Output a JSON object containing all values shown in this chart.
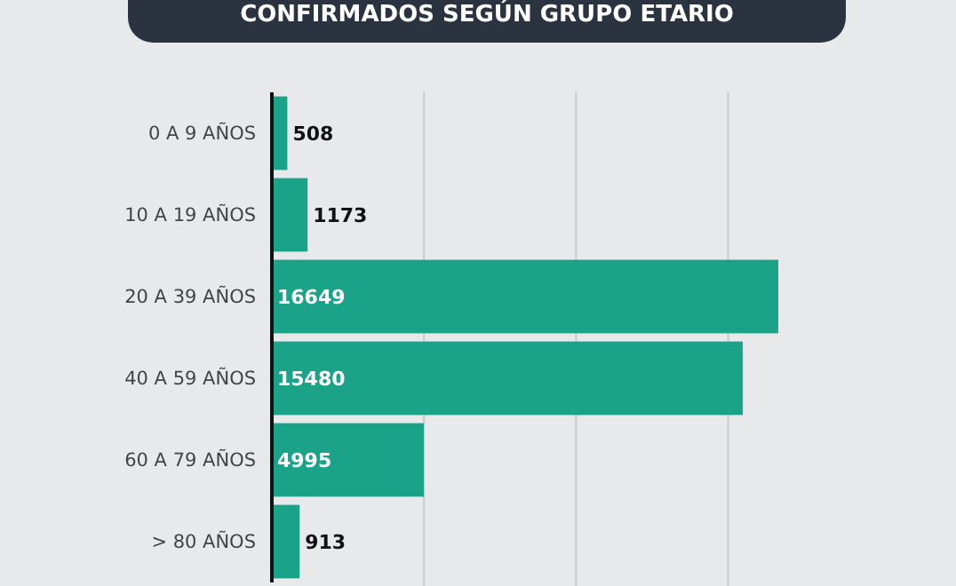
{
  "chart_data": {
    "type": "bar",
    "orientation": "horizontal",
    "title": "CONFIRMADOS SEGÚN GRUPO ETARIO",
    "categories": [
      "0 A 9 AÑOS",
      "10 A 19 AÑOS",
      "20 A 39 AÑOS",
      "40 A 59 AÑOS",
      "60 A 79 AÑOS",
      "> 80 AÑOS"
    ],
    "values": [
      508,
      1173,
      16649,
      15480,
      4995,
      913
    ],
    "color": "#1ba38a",
    "xticks": [
      {
        "value": 5000,
        "label": null
      },
      {
        "value": 10000,
        "label": null
      },
      {
        "value": 15000,
        "label": null
      }
    ],
    "grid": "x",
    "data_labels": true,
    "tick_labels": "y"
  }
}
